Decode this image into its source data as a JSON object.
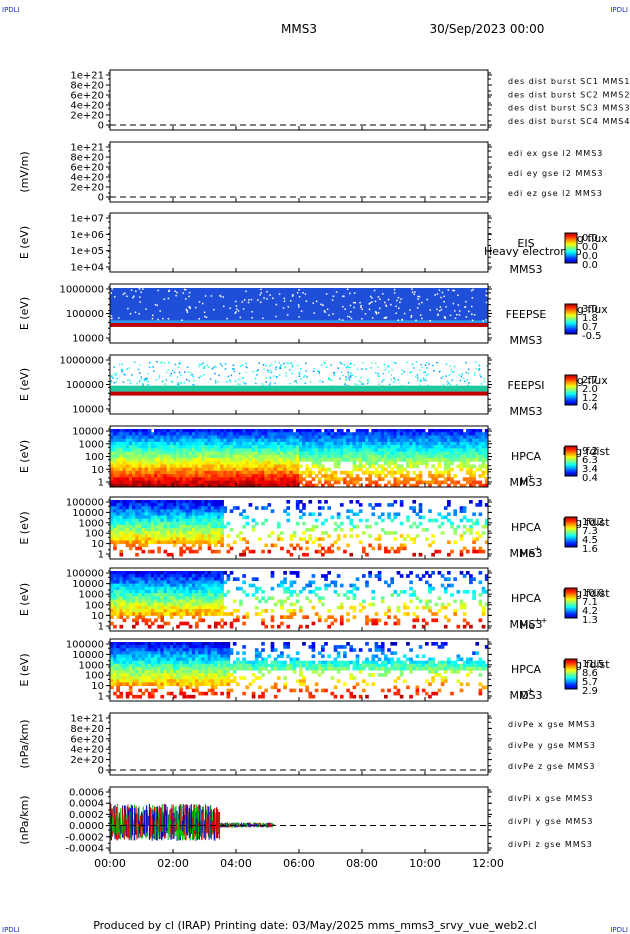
{
  "header": {
    "corner_tl": "IPDLI",
    "corner_tr": "IPDLI",
    "corner_bl": "IPDLI",
    "corner_br": "IPDLI",
    "spacecraft": "MMS3",
    "date": "30/Sep/2023 00:00"
  },
  "footer": {
    "credit": "Produced by cl (IRAP)   Printing date: 03/May/2025   mms_mms3_srvy_vue_web2.cl"
  },
  "chart_data": {
    "type": "multi-panel",
    "x": {
      "range": [
        "00:00",
        "12:00"
      ],
      "ticks": [
        "00:00",
        "02:00",
        "04:00",
        "06:00",
        "08:00",
        "10:00",
        "12:00"
      ]
    },
    "panels": [
      {
        "type": "line",
        "ylabel": "",
        "yticks": [
          "1e+21",
          "8e+20",
          "6e+20",
          "4e+20",
          "2e+20",
          "0"
        ],
        "ylim": [
          0,
          1.1e+21
        ],
        "legend": [
          {
            "text": "des dist burst SC1 MMS1",
            "color": "#0000c8"
          },
          {
            "text": "des dist burst SC2 MMS2",
            "color": "#e000e0"
          },
          {
            "text": "des dist burst SC3 MMS3",
            "color": "#d40000"
          },
          {
            "text": "des dist burst SC4 MMS4",
            "color": "#00c000"
          }
        ],
        "series": [],
        "zero_line": true
      },
      {
        "type": "line",
        "ylabel": "(mV/m)",
        "yticks": [
          "1e+21",
          "8e+20",
          "6e+20",
          "4e+20",
          "2e+20",
          "0"
        ],
        "ylim": [
          0,
          1.1e+21
        ],
        "legend": [
          {
            "text": "edi ex gse l2 MMS3",
            "color": "#d40000"
          },
          {
            "text": "edi ey gse l2 MMS3",
            "color": "#00c000"
          },
          {
            "text": "edi ez gse l2 MMS3",
            "color": "#0000c8"
          }
        ],
        "series": [],
        "zero_line": true
      },
      {
        "type": "heatmap",
        "ylabel": "E (eV)",
        "yticks": [
          "1e+07",
          "1e+06",
          "1e+05",
          "1e+04"
        ],
        "ylog": true,
        "ylim": [
          10000,
          10000000
        ],
        "labels": [
          "EIS",
          "MMS3"
        ],
        "overlay": "Heavy electron to",
        "colorbar": {
          "title": "Log flux",
          "ticks": [
            "0.0",
            "0.0",
            "0.0",
            "0.0"
          ]
        },
        "fill": "none"
      },
      {
        "type": "heatmap",
        "ylabel": "E (eV)",
        "yticks": [
          "1000000",
          "100000",
          "10000"
        ],
        "ylog": true,
        "ylim": [
          10000,
          1000000
        ],
        "labels": [
          "FEEPSE",
          "MMS3"
        ],
        "colorbar": {
          "title": "Log flux",
          "ticks": [
            "3.0",
            "1.8",
            "0.7",
            "-0.5"
          ]
        },
        "fill": "feepse"
      },
      {
        "type": "heatmap",
        "ylabel": "E (eV)",
        "yticks": [
          "1000000",
          "100000",
          "10000"
        ],
        "ylog": true,
        "ylim": [
          10000,
          1000000
        ],
        "labels": [
          "FEEPSI",
          "MMS3"
        ],
        "colorbar": {
          "title": "Log flux",
          "ticks": [
            "2.7",
            "2.0",
            "1.2",
            "0.4"
          ]
        },
        "fill": "feepsi"
      },
      {
        "type": "heatmap",
        "ylabel": "E (eV)",
        "yticks": [
          "10000",
          "1000",
          "100",
          "10",
          "1"
        ],
        "ylog": true,
        "ylim": [
          1,
          40000
        ],
        "labels": [
          "HPCA",
          "MMS3"
        ],
        "species": "H",
        "species_sup": "+",
        "colorbar": {
          "title": "Log fdist",
          "ticks": [
            "9.2",
            "6.3",
            "3.4",
            "0.4"
          ]
        },
        "fill": "hplus"
      },
      {
        "type": "heatmap",
        "ylabel": "E (eV)",
        "yticks": [
          "100000",
          "10000",
          "1000",
          "100",
          "10",
          "1"
        ],
        "ylog": true,
        "ylim": [
          1,
          100000
        ],
        "labels": [
          "HPCA",
          "MMS3"
        ],
        "species": "He",
        "species_sup": "+",
        "colorbar": {
          "title": "Log fdist",
          "ticks": [
            "10.2",
            "7.3",
            "4.5",
            "1.6"
          ]
        },
        "fill": "heplus"
      },
      {
        "type": "heatmap",
        "ylabel": "E (eV)",
        "yticks": [
          "100000",
          "10000",
          "1000",
          "100",
          "10",
          "1"
        ],
        "ylog": true,
        "ylim": [
          1,
          100000
        ],
        "labels": [
          "HPCA",
          "MMS3"
        ],
        "species": "He",
        "species_sup": "++",
        "colorbar": {
          "title": "Log fdist",
          "ticks": [
            "10.0",
            "7.1",
            "4.2",
            "1.3"
          ]
        },
        "fill": "hepp"
      },
      {
        "type": "heatmap",
        "ylabel": "E (eV)",
        "yticks": [
          "100000",
          "10000",
          "1000",
          "100",
          "10",
          "1"
        ],
        "ylog": true,
        "ylim": [
          1,
          100000
        ],
        "labels": [
          "HPCA",
          "MMS3"
        ],
        "species": "O",
        "species_sup": "+",
        "colorbar": {
          "title": "Log fdist",
          "ticks": [
            "11.5",
            "8.6",
            "5.7",
            "2.9"
          ]
        },
        "fill": "oplus"
      },
      {
        "type": "line",
        "ylabel": "(nPa/km)",
        "yticks": [
          "1e+21",
          "8e+20",
          "6e+20",
          "4e+20",
          "2e+20",
          "0"
        ],
        "ylim": [
          0,
          1.1e+21
        ],
        "legend": [
          {
            "text": "divPe x gse MMS3",
            "color": "#d40000"
          },
          {
            "text": "divPe y gse MMS3",
            "color": "#00c000"
          },
          {
            "text": "divPe z gse MMS3",
            "color": "#0000c8"
          }
        ],
        "series": [],
        "zero_line": true
      },
      {
        "type": "line",
        "ylabel": "(nPa/km)",
        "yticks": [
          "0.0006",
          "0.0004",
          "0.0002",
          "0.0000",
          "-0.0002",
          "-0.0004"
        ],
        "ylim": [
          -0.0005,
          0.0007
        ],
        "legend": [
          {
            "text": "divPi x gse MMS3",
            "color": "#d40000"
          },
          {
            "text": "divPi y gse MMS3",
            "color": "#00c000"
          },
          {
            "text": "divPi z gse MMS3",
            "color": "#0000c8"
          }
        ],
        "series_extent_hours": [
          0,
          5.2
        ],
        "zero_line": true,
        "fill": "divpi"
      }
    ]
  }
}
